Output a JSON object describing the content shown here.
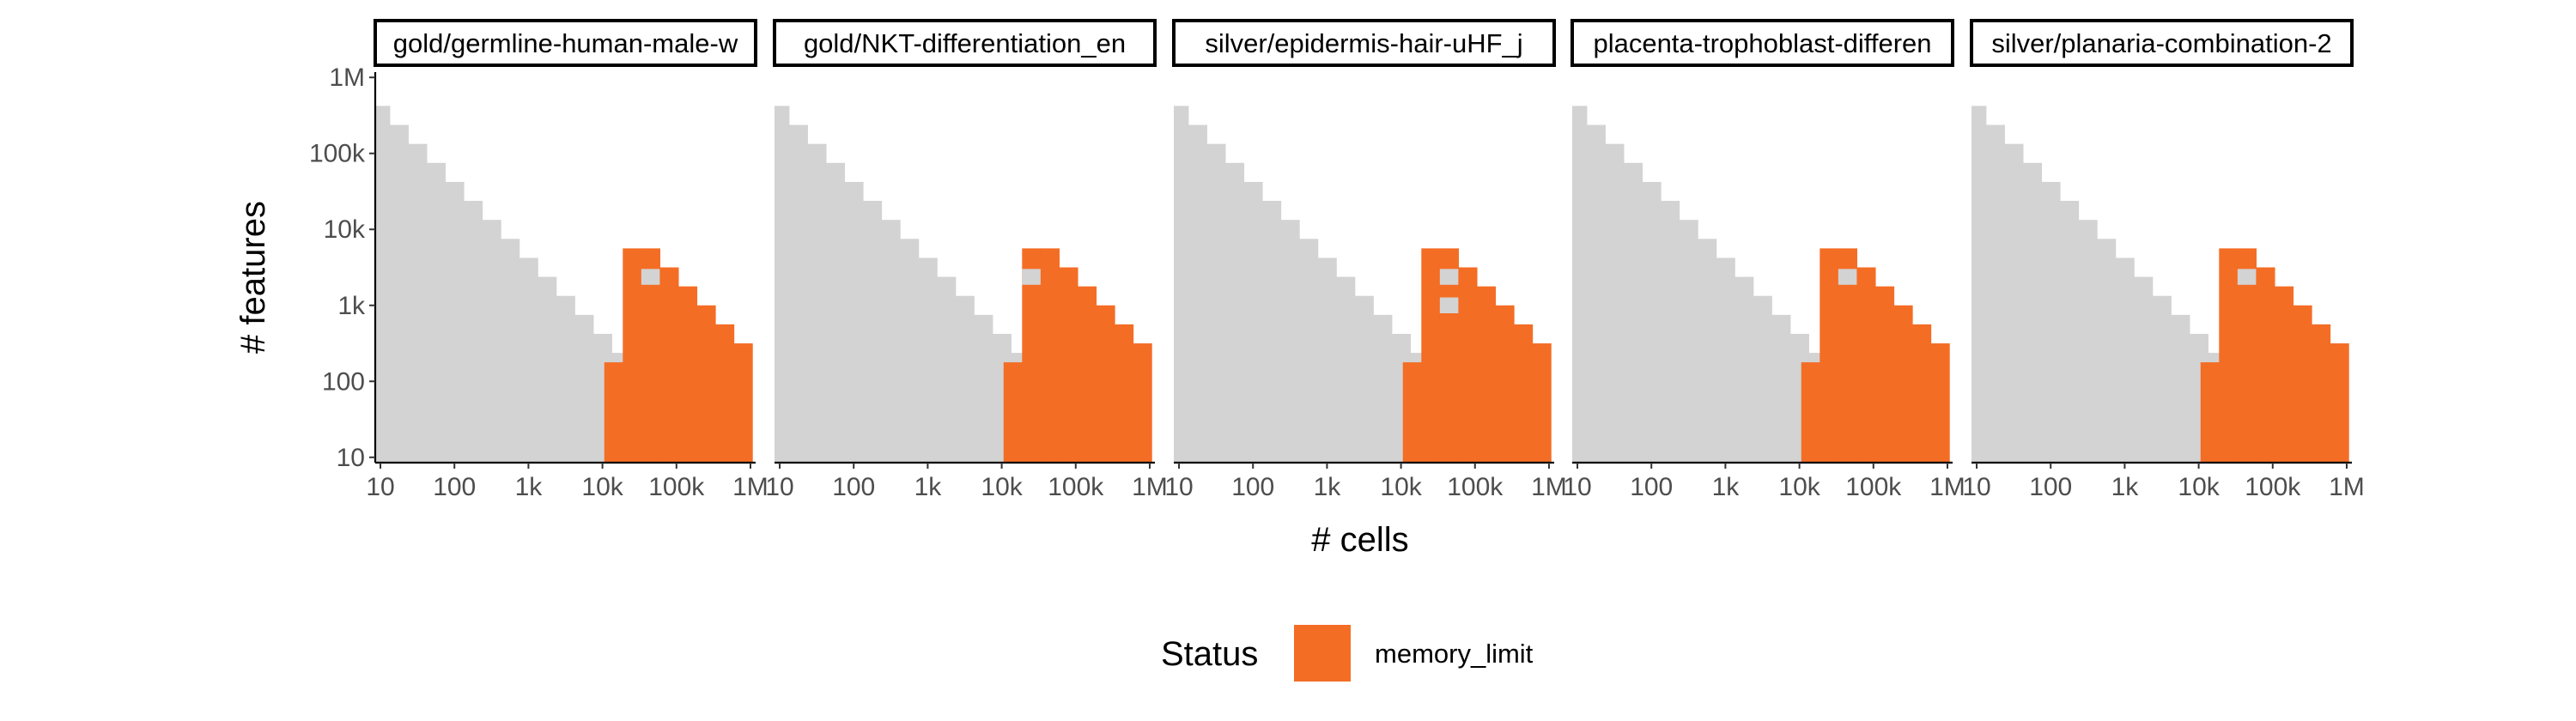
{
  "colors": {
    "background_cell": "#d3d3d3",
    "memory_limit": "#f46d25",
    "axis": "#000000",
    "tick_text": "#4d4d4d"
  },
  "chart_data": {
    "type": "heatmap",
    "facet_titles": [
      "gold/germline-human-male-w",
      "gold/NKT-differentiation_en",
      "silver/epidermis-hair-uHF_j",
      "placenta-trophoblast-differen",
      "silver/planaria-combination-2"
    ],
    "xlabel": "# cells",
    "ylabel": "# features",
    "x_scale": "log10",
    "y_scale": "log10",
    "xlim": [
      10,
      1000000
    ],
    "ylim": [
      10,
      1000000
    ],
    "x_ticks": [
      10,
      100,
      1000,
      10000,
      100000,
      1000000
    ],
    "x_tick_labels": [
      "10",
      "100",
      "1k",
      "10k",
      "100k",
      "1M"
    ],
    "y_ticks": [
      10,
      100,
      1000,
      10000,
      100000,
      1000000
    ],
    "y_tick_labels": [
      "10",
      "100",
      "1k",
      "10k",
      "100k",
      "1M"
    ],
    "grid": false,
    "legend": {
      "position": "bottom",
      "title": "Status",
      "entries": [
        "memory_limit"
      ]
    },
    "evaluated_region": "log10(cells) + log10(features) <= 6.5",
    "memory_limit_cells": [
      {
        "cells": 14125,
        "features_min": 10,
        "features_max": 178
      },
      {
        "cells": 25119,
        "features_min": 10,
        "features_max": 5623
      },
      {
        "cells": 44668,
        "features_min": 10,
        "features_max": 5623
      },
      {
        "cells": 79433,
        "features_min": 10,
        "features_max": 3162
      },
      {
        "cells": 141254,
        "features_min": 10,
        "features_max": 1778
      },
      {
        "cells": 251189,
        "features_min": 10,
        "features_max": 1000
      },
      {
        "cells": 446684,
        "features_min": 10,
        "features_max": 562
      },
      {
        "cells": 794328,
        "features_min": 10,
        "features_max": 316
      }
    ],
    "facet_exceptions": [
      {
        "facet": 0,
        "gaps": [
          {
            "cells": 44668,
            "features": 2371
          }
        ],
        "extra": []
      },
      {
        "facet": 1,
        "gaps": [
          {
            "cells": 25119,
            "features": 2371
          }
        ],
        "extra": []
      },
      {
        "facet": 2,
        "gaps": [
          {
            "cells": 44668,
            "features": 1000
          },
          {
            "cells": 44668,
            "features": 2371
          }
        ],
        "extra": []
      },
      {
        "facet": 3,
        "gaps": [
          {
            "cells": 44668,
            "features": 2371
          }
        ],
        "extra": []
      },
      {
        "facet": 4,
        "gaps": [
          {
            "cells": 44668,
            "features": 2371
          }
        ],
        "extra": []
      }
    ]
  }
}
